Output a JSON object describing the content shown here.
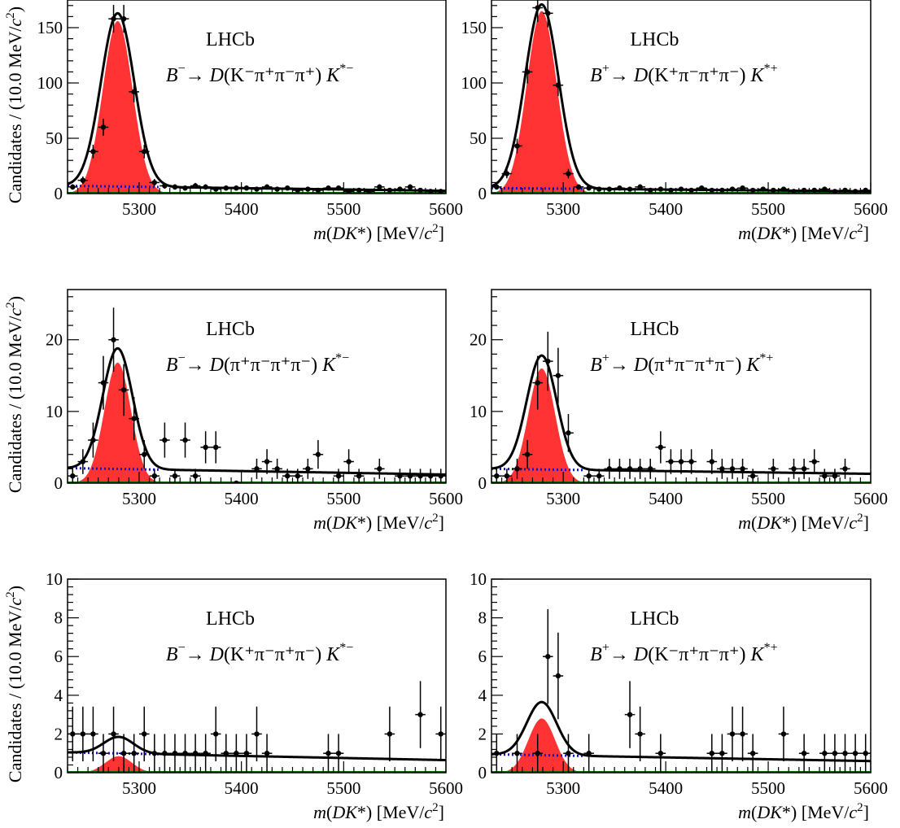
{
  "colors": {
    "signal": "#ff3333",
    "total_fit": "#000000",
    "background_fit": "#1010d0",
    "zero_line": "#006600",
    "data_points": "#000000"
  },
  "chart_data": [
    {
      "type": "scatter",
      "panel": "top-left",
      "label": "LHCb",
      "decay": {
        "parent": "B",
        "parent_sup": "−",
        "d_mode": "K⁻π⁺π⁻π⁺",
        "kstar_sup": "*−"
      },
      "xlabel": "m(DK*) [MeV/c²]",
      "ylabel": "Candidates / (10.0 MeV/c²)",
      "xlim": [
        5230,
        5600
      ],
      "ylim": [
        0,
        175
      ],
      "xticks": [
        5300,
        5400,
        5500,
        5600
      ],
      "yticks": [
        0,
        50,
        100,
        150
      ],
      "legend": "none",
      "grid": false,
      "fit": {
        "signal_mean": 5279,
        "signal_sigma": 14.5,
        "signal_peak": 156,
        "total_peak": 163,
        "background_at_xmin": 7,
        "background_at_xmax": 2.5
      },
      "x": [
        5235,
        5245,
        5255,
        5265,
        5275,
        5285,
        5295,
        5305,
        5315,
        5325,
        5335,
        5345,
        5355,
        5365,
        5375,
        5385,
        5395,
        5405,
        5415,
        5425,
        5435,
        5445,
        5455,
        5465,
        5475,
        5485,
        5495,
        5505,
        5515,
        5525,
        5535,
        5545,
        5555,
        5565,
        5575,
        5585,
        5595
      ],
      "y": [
        6,
        12,
        38,
        60,
        158,
        158,
        92,
        38,
        10,
        7,
        6,
        5,
        7,
        6,
        4,
        5,
        5,
        5,
        4,
        6,
        4,
        5,
        3,
        4,
        3,
        5,
        5,
        2,
        3,
        2,
        6,
        3,
        4,
        6,
        3,
        2,
        2
      ]
    },
    {
      "type": "scatter",
      "panel": "top-right",
      "label": "LHCb",
      "decay": {
        "parent": "B",
        "parent_sup": "+",
        "d_mode": "K⁺π⁻π⁺π⁻",
        "kstar_sup": "*+"
      },
      "xlabel": "m(DK*) [MeV/c²]",
      "ylabel": "",
      "xlim": [
        5230,
        5600
      ],
      "ylim": [
        0,
        175
      ],
      "xticks": [
        5300,
        5400,
        5500,
        5600
      ],
      "yticks": [
        0,
        50,
        100,
        150
      ],
      "legend": "none",
      "grid": false,
      "fit": {
        "signal_mean": 5279,
        "signal_sigma": 14.5,
        "signal_peak": 165,
        "total_peak": 171,
        "background_at_xmin": 5,
        "background_at_xmax": 2
      },
      "x": [
        5235,
        5245,
        5255,
        5265,
        5275,
        5285,
        5295,
        5305,
        5315,
        5325,
        5335,
        5345,
        5355,
        5365,
        5375,
        5385,
        5395,
        5405,
        5415,
        5425,
        5435,
        5445,
        5455,
        5465,
        5475,
        5485,
        5495,
        5505,
        5515,
        5525,
        5535,
        5545,
        5555,
        5565,
        5575,
        5585,
        5595
      ],
      "y": [
        6,
        18,
        43,
        110,
        168,
        163,
        98,
        18,
        6,
        5,
        4,
        4,
        5,
        4,
        6,
        3,
        4,
        3,
        4,
        3,
        5,
        3,
        3,
        4,
        5,
        3,
        4,
        3,
        4,
        2,
        3,
        3,
        4,
        2,
        3,
        2,
        3
      ]
    },
    {
      "type": "scatter",
      "panel": "middle-left",
      "label": "LHCb",
      "decay": {
        "parent": "B",
        "parent_sup": "−",
        "d_mode": "π⁺π⁻π⁺π⁻",
        "kstar_sup": "*−"
      },
      "xlabel": "m(DK*) [MeV/c²]",
      "ylabel": "Candidates / (10.0 MeV/c²)",
      "xlim": [
        5230,
        5600
      ],
      "ylim": [
        0,
        27
      ],
      "xticks": [
        5300,
        5400,
        5500,
        5600
      ],
      "yticks": [
        0,
        10,
        20
      ],
      "legend": "none",
      "grid": false,
      "fit": {
        "signal_mean": 5279,
        "signal_sigma": 13,
        "signal_peak": 16.8,
        "total_peak": 18.8,
        "background_at_xmin": 2.1,
        "background_at_xmax": 1.2
      },
      "x": [
        5235,
        5245,
        5255,
        5265,
        5275,
        5285,
        5295,
        5305,
        5315,
        5325,
        5335,
        5345,
        5355,
        5365,
        5375,
        5395,
        5415,
        5425,
        5435,
        5445,
        5455,
        5465,
        5475,
        5495,
        5505,
        5515,
        5535,
        5555,
        5565,
        5575,
        5585,
        5595
      ],
      "y": [
        1,
        3,
        6,
        14,
        20,
        13,
        9,
        4,
        1,
        6,
        1,
        6,
        1,
        5,
        5,
        0,
        2,
        3,
        2,
        1,
        1,
        2,
        4,
        1,
        3,
        1,
        2,
        1,
        1,
        1,
        1,
        1
      ]
    },
    {
      "type": "scatter",
      "panel": "middle-right",
      "label": "LHCb",
      "decay": {
        "parent": "B",
        "parent_sup": "+",
        "d_mode": "π⁺π⁻π⁺π⁻",
        "kstar_sup": "*+"
      },
      "xlabel": "m(DK*) [MeV/c²]",
      "ylabel": "",
      "xlim": [
        5230,
        5600
      ],
      "ylim": [
        0,
        27
      ],
      "xticks": [
        5300,
        5400,
        5500,
        5600
      ],
      "yticks": [
        0,
        10,
        20
      ],
      "legend": "none",
      "grid": false,
      "fit": {
        "signal_mean": 5279,
        "signal_sigma": 13,
        "signal_peak": 16,
        "total_peak": 17.8,
        "background_at_xmin": 2,
        "background_at_xmax": 1.3
      },
      "x": [
        5235,
        5245,
        5255,
        5265,
        5275,
        5285,
        5295,
        5305,
        5325,
        5335,
        5345,
        5355,
        5365,
        5375,
        5385,
        5395,
        5405,
        5415,
        5425,
        5445,
        5455,
        5465,
        5475,
        5485,
        5505,
        5525,
        5535,
        5545,
        5555,
        5565,
        5575
      ],
      "y": [
        1,
        1,
        2,
        4,
        14,
        17,
        15,
        7,
        1,
        1,
        2,
        2,
        2,
        2,
        2,
        5,
        3,
        3,
        3,
        3,
        2,
        2,
        2,
        1,
        2,
        2,
        2,
        3,
        1,
        1,
        2
      ]
    },
    {
      "type": "scatter",
      "panel": "bottom-left",
      "label": "LHCb",
      "decay": {
        "parent": "B",
        "parent_sup": "−",
        "d_mode": "K⁺π⁻π⁺π⁻",
        "kstar_sup": "*−"
      },
      "xlabel": "m(DK*) [MeV/c²]",
      "ylabel": "Candidates / (10.0 MeV/c²)",
      "xlim": [
        5230,
        5600
      ],
      "ylim": [
        0,
        10
      ],
      "xticks": [
        5300,
        5400,
        5500,
        5600
      ],
      "yticks": [
        0,
        2,
        4,
        6,
        8,
        10
      ],
      "legend": "none",
      "grid": false,
      "fit": {
        "signal_mean": 5280,
        "signal_sigma": 13,
        "signal_peak": 0.85,
        "total_peak": 1.85,
        "background_at_xmin": 1.05,
        "background_at_xmax": 0.65
      },
      "x": [
        5235,
        5245,
        5255,
        5265,
        5275,
        5285,
        5295,
        5305,
        5315,
        5325,
        5335,
        5345,
        5355,
        5365,
        5375,
        5385,
        5395,
        5405,
        5415,
        5425,
        5485,
        5495,
        5545,
        5575,
        5595
      ],
      "y": [
        2,
        2,
        2,
        1,
        2,
        1,
        1,
        2,
        1,
        1,
        1,
        1,
        1,
        1,
        2,
        1,
        1,
        1,
        2,
        1,
        1,
        1,
        2,
        3,
        2
      ]
    },
    {
      "type": "scatter",
      "panel": "bottom-right",
      "label": "LHCb",
      "decay": {
        "parent": "B",
        "parent_sup": "+",
        "d_mode": "K⁻π⁺π⁻π⁺",
        "kstar_sup": "*+"
      },
      "xlabel": "m(DK*) [MeV/c²]",
      "ylabel": "",
      "xlim": [
        5230,
        5600
      ],
      "ylim": [
        0,
        10
      ],
      "xticks": [
        5300,
        5400,
        5500,
        5600
      ],
      "yticks": [
        0,
        2,
        4,
        6,
        8,
        10
      ],
      "legend": "none",
      "grid": false,
      "fit": {
        "signal_mean": 5279,
        "signal_sigma": 13,
        "signal_peak": 2.8,
        "total_peak": 3.65,
        "background_at_xmin": 0.95,
        "background_at_xmax": 0.6
      },
      "x": [
        5235,
        5255,
        5275,
        5285,
        5295,
        5305,
        5325,
        5365,
        5375,
        5395,
        5445,
        5455,
        5465,
        5475,
        5485,
        5515,
        5535,
        5555,
        5565,
        5575,
        5585,
        5595
      ],
      "y": [
        1,
        1,
        1,
        6,
        5,
        1,
        1,
        3,
        2,
        1,
        1,
        1,
        2,
        2,
        1,
        2,
        1,
        1,
        1,
        1,
        1,
        1
      ]
    }
  ]
}
